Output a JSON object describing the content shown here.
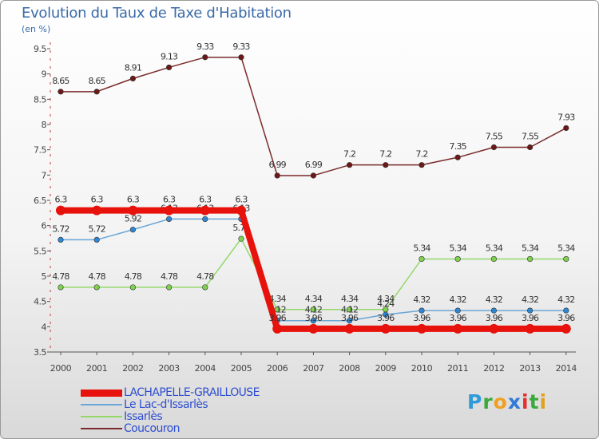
{
  "title": "Evolution du Taux de Taxe d'Habitation",
  "subtitle": "(en %)",
  "logo": {
    "p": "P",
    "r": "r",
    "o": "o",
    "x": "x",
    "i": "i",
    "t": "t",
    "i2": "i"
  },
  "chart_data": {
    "type": "line",
    "title": "Evolution du Taux de Taxe d'Habitation",
    "ylabel": "(en %)",
    "xlabel": "",
    "ylim": [
      3.5,
      9.5
    ],
    "yticks": [
      3.5,
      4,
      4.5,
      5,
      5.5,
      6,
      6.5,
      7,
      7.5,
      8,
      8.5,
      9,
      9.5
    ],
    "ytick_labels": [
      "3.5",
      "4",
      "4.5",
      "5",
      "5.5",
      "6",
      "6.5",
      "7",
      "7.5",
      "8",
      "8.5",
      "9",
      "9.5"
    ],
    "categories": [
      "2000",
      "2001",
      "2002",
      "2003",
      "2004",
      "2005",
      "2006",
      "2007",
      "2008",
      "2009",
      "2010",
      "2011",
      "2012",
      "2013",
      "2014"
    ],
    "series": [
      {
        "name": "LACHAPELLE-GRAILLOUSE",
        "color": "#e8120c",
        "values": [
          6.3,
          6.3,
          6.3,
          6.3,
          6.3,
          6.3,
          3.96,
          3.96,
          3.96,
          3.96,
          3.96,
          3.96,
          3.96,
          3.96,
          3.96
        ],
        "labels": [
          "6.3",
          "6.3",
          "6.3",
          "6.3",
          "6.3",
          "6.3",
          "3.96",
          "3.96",
          "3.96",
          "3.96",
          "3.96",
          "3.96",
          "3.96",
          "3.96",
          "3.96"
        ]
      },
      {
        "name": "Le Lac-d'Issarlès",
        "color": "#6aa6d6",
        "marker": "#2f86d0",
        "values": [
          5.72,
          5.72,
          5.92,
          6.13,
          6.13,
          6.13,
          4.12,
          4.12,
          4.12,
          4.24,
          4.32,
          4.32,
          4.32,
          4.32,
          4.32
        ],
        "labels": [
          "5.72",
          "5.72",
          "5.92",
          "6.13",
          "6.13",
          "6.13",
          "4.12",
          "4.12",
          "4.12",
          "4.24",
          "4.32",
          "4.32",
          "4.32",
          "4.32",
          "4.32"
        ]
      },
      {
        "name": "Issarlès",
        "color": "#94d86a",
        "marker": "#7ed04e",
        "values": [
          4.78,
          4.78,
          4.78,
          4.78,
          4.78,
          5.74,
          4.34,
          4.34,
          4.34,
          4.34,
          5.34,
          5.34,
          5.34,
          5.34,
          5.34
        ],
        "labels": [
          "4.78",
          "4.78",
          "4.78",
          "4.78",
          "4.78",
          "5.74",
          "4.34",
          "4.34",
          "4.34",
          "4.34",
          "5.34",
          "5.34",
          "5.34",
          "5.34",
          "5.34"
        ]
      },
      {
        "name": "Coucouron",
        "color": "#7a2a2a",
        "marker": "#6a1818",
        "values": [
          8.65,
          8.65,
          8.91,
          9.13,
          9.33,
          9.33,
          6.99,
          6.99,
          7.2,
          7.2,
          7.2,
          7.35,
          7.55,
          7.55,
          7.93
        ],
        "labels": [
          "8.65",
          "8.65",
          "8.91",
          "9.13",
          "9.33",
          "9.33",
          "6.99",
          "6.99",
          "7.2",
          "7.2",
          "7.2",
          "7.35",
          "7.55",
          "7.55",
          "7.93"
        ]
      }
    ],
    "legend": [
      "LACHAPELLE-GRAILLOUSE",
      "Le Lac-d'Issarlès",
      "Issarlès",
      "Coucouron"
    ],
    "legend_position": "bottom-left"
  }
}
